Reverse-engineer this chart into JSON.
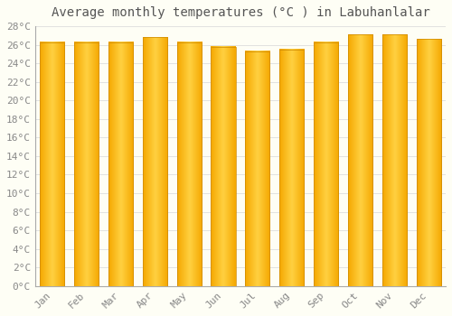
{
  "title": "Average monthly temperatures (°C ) in Labuhanlalar",
  "months": [
    "Jan",
    "Feb",
    "Mar",
    "Apr",
    "May",
    "Jun",
    "Jul",
    "Aug",
    "Sep",
    "Oct",
    "Nov",
    "Dec"
  ],
  "values": [
    26.3,
    26.3,
    26.3,
    26.8,
    26.3,
    25.8,
    25.3,
    25.5,
    26.3,
    27.1,
    27.1,
    26.6
  ],
  "bar_color_center": "#FFD040",
  "bar_color_edge": "#F5A800",
  "background_color": "#FEFEF5",
  "grid_color": "#DDDDDD",
  "ylim": [
    0,
    28
  ],
  "yticks": [
    0,
    2,
    4,
    6,
    8,
    10,
    12,
    14,
    16,
    18,
    20,
    22,
    24,
    26,
    28
  ],
  "ytick_labels": [
    "0°C",
    "2°C",
    "4°C",
    "6°C",
    "8°C",
    "10°C",
    "12°C",
    "14°C",
    "16°C",
    "18°C",
    "20°C",
    "22°C",
    "24°C",
    "26°C",
    "28°C"
  ],
  "title_fontsize": 10,
  "tick_fontsize": 8,
  "title_color": "#555555",
  "tick_color": "#888888"
}
